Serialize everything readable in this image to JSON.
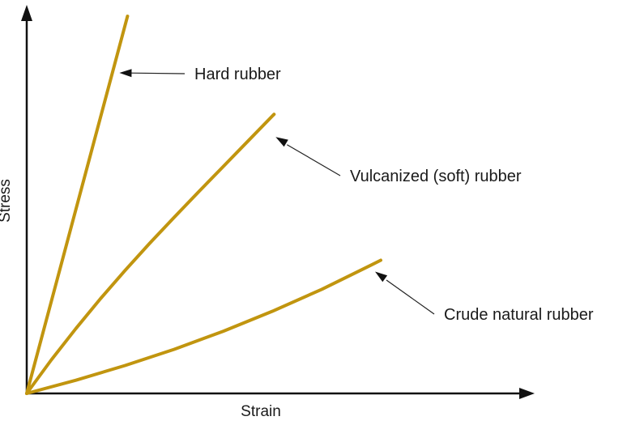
{
  "chart_data": {
    "type": "line",
    "title": "",
    "xlabel": "Strain",
    "ylabel": "Stress",
    "xlim": [
      0,
      1
    ],
    "ylim": [
      0,
      1
    ],
    "ticks": false,
    "grid": false,
    "legend": "none",
    "line_color": "#C1950F",
    "axis_color": "#111111",
    "series": [
      {
        "name": "Hard rubber",
        "x": [
          0,
          0.205
        ],
        "y": [
          0,
          1.0
        ]
      },
      {
        "name": "Vulcanized (soft) rubber",
        "x": [
          0,
          0.05,
          0.1,
          0.15,
          0.2,
          0.25,
          0.3,
          0.35,
          0.4,
          0.45,
          0.5,
          0.503
        ],
        "y": [
          0,
          0.089,
          0.172,
          0.251,
          0.326,
          0.398,
          0.467,
          0.535,
          0.602,
          0.669,
          0.736,
          0.74
        ]
      },
      {
        "name": "Crude natural rubber",
        "x": [
          0,
          0.1,
          0.2,
          0.3,
          0.4,
          0.5,
          0.6,
          0.7,
          0.72
        ],
        "y": [
          0,
          0.035,
          0.074,
          0.117,
          0.165,
          0.218,
          0.276,
          0.34,
          0.353
        ]
      }
    ]
  }
}
